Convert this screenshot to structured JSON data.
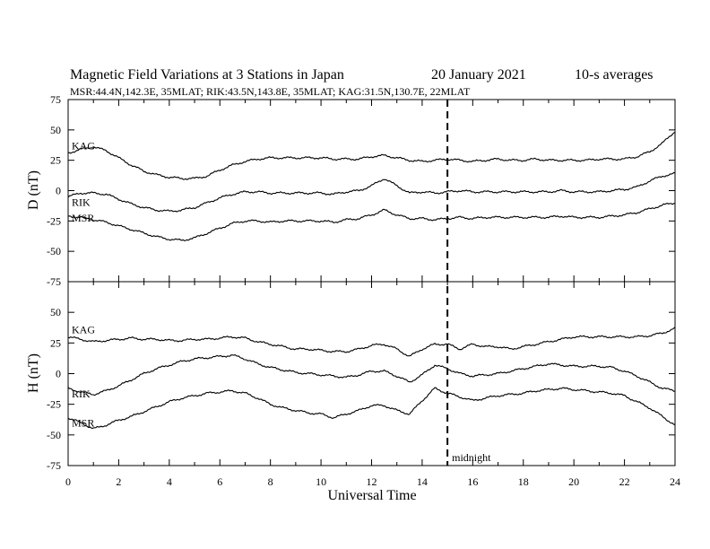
{
  "header": {
    "title": "Magnetic Field Variations at 3 Stations in Japan",
    "date": "20 January  2021",
    "averaging": "10-s averages",
    "subtitle": "MSR:44.4N,142.3E, 35MLAT;  RIK:43.5N,143.8E, 35MLAT;  KAG:31.5N,130.7E, 22MLAT"
  },
  "chart_data": [
    {
      "type": "line",
      "panel": "D",
      "ylabel": "D (nT)",
      "xlim": [
        0,
        24
      ],
      "ylim": [
        -75,
        75
      ],
      "yticks": [
        75,
        50,
        25,
        0,
        -25,
        -50,
        -75
      ],
      "ytick_labels": [
        "75",
        "50",
        "25",
        "0",
        "-25",
        "-50",
        "-75"
      ],
      "series": [
        {
          "name": "KAG",
          "x": [
            0,
            0.5,
            1,
            1.5,
            2,
            2.5,
            3,
            3.5,
            4,
            4.5,
            5,
            5.5,
            6,
            6.5,
            7,
            7.5,
            8,
            8.5,
            9,
            9.5,
            10,
            10.5,
            11,
            11.5,
            12,
            12.5,
            13,
            13.5,
            14,
            14.5,
            15,
            15.5,
            16,
            16.5,
            17,
            17.5,
            18,
            18.5,
            19,
            19.5,
            20,
            20.5,
            21,
            21.5,
            22,
            22.5,
            23,
            23.5,
            24
          ],
          "values": [
            31,
            34,
            36,
            33,
            27,
            21,
            16,
            13,
            11,
            10,
            10,
            12,
            17,
            21,
            24,
            26,
            27,
            27,
            27,
            27,
            27,
            26,
            26,
            26,
            28,
            29,
            27,
            25,
            24,
            25,
            26,
            25,
            24,
            25,
            26,
            25,
            25,
            26,
            25,
            25,
            25,
            25,
            26,
            26,
            26,
            28,
            32,
            39,
            49
          ]
        },
        {
          "name": "RIK",
          "x": [
            0,
            0.5,
            1,
            1.5,
            2,
            2.5,
            3,
            3.5,
            4,
            4.5,
            5,
            5.5,
            6,
            6.5,
            7,
            7.5,
            8,
            8.5,
            9,
            9.5,
            10,
            10.5,
            11,
            11.5,
            12,
            12.5,
            13,
            13.5,
            14,
            14.5,
            15,
            15.5,
            16,
            16.5,
            17,
            17.5,
            18,
            18.5,
            19,
            19.5,
            20,
            20.5,
            21,
            21.5,
            22,
            22.5,
            23,
            23.5,
            24
          ],
          "values": [
            -5,
            -2,
            -2,
            -3,
            -7,
            -11,
            -14,
            -16,
            -17,
            -16,
            -14,
            -10,
            -6,
            -3,
            -1,
            -1,
            -2,
            -2,
            -2,
            -2,
            -2,
            -3,
            -1,
            0,
            4,
            10,
            4,
            -2,
            -1,
            -2,
            -1,
            0,
            -1,
            -1,
            -1,
            -1,
            -1,
            -1,
            -1,
            0,
            -1,
            -1,
            -1,
            0,
            1,
            3,
            8,
            12,
            14
          ]
        },
        {
          "name": "MSR",
          "x": [
            0,
            0.5,
            1,
            1.5,
            2,
            2.5,
            3,
            3.5,
            4,
            4.5,
            5,
            5.5,
            6,
            6.5,
            7,
            7.5,
            8,
            8.5,
            9,
            9.5,
            10,
            10.5,
            11,
            11.5,
            12,
            12.5,
            13,
            13.5,
            14,
            14.5,
            15,
            15.5,
            16,
            16.5,
            17,
            17.5,
            18,
            18.5,
            19,
            19.5,
            20,
            20.5,
            21,
            21.5,
            22,
            22.5,
            23,
            23.5,
            24
          ],
          "values": [
            -21,
            -22,
            -24,
            -26,
            -29,
            -32,
            -35,
            -38,
            -40,
            -41,
            -39,
            -35,
            -31,
            -27,
            -25,
            -25,
            -26,
            -25,
            -25,
            -25,
            -25,
            -26,
            -24,
            -23,
            -20,
            -16,
            -20,
            -23,
            -23,
            -24,
            -23,
            -22,
            -23,
            -22,
            -22,
            -22,
            -22,
            -22,
            -22,
            -21,
            -22,
            -22,
            -22,
            -21,
            -20,
            -18,
            -15,
            -12,
            -10
          ]
        }
      ]
    },
    {
      "type": "line",
      "panel": "H",
      "ylabel": "H (nT)",
      "xlabel": "Universal Time",
      "xlim": [
        0,
        24
      ],
      "ylim": [
        -75,
        75
      ],
      "xticks": [
        0,
        2,
        4,
        6,
        8,
        10,
        12,
        14,
        16,
        18,
        20,
        22,
        24
      ],
      "xtick_labels": [
        "0",
        "2",
        "4",
        "6",
        "8",
        "10",
        "12",
        "14",
        "16",
        "18",
        "20",
        "22",
        "24"
      ],
      "yticks": [
        50,
        25,
        0,
        -25,
        -50,
        -75
      ],
      "ytick_labels": [
        "50",
        "25",
        "0",
        "-25",
        "-50",
        "-75"
      ],
      "series": [
        {
          "name": "KAG",
          "x": [
            0,
            0.5,
            1,
            1.5,
            2,
            2.5,
            3,
            3.5,
            4,
            4.5,
            5,
            5.5,
            6,
            6.5,
            7,
            7.5,
            8,
            8.5,
            9,
            9.5,
            10,
            10.5,
            11,
            11.5,
            12,
            12.5,
            13,
            13.5,
            14,
            14.5,
            15,
            15.5,
            16,
            16.5,
            17,
            17.5,
            18,
            18.5,
            19,
            19.5,
            20,
            20.5,
            21,
            21.5,
            22,
            22.5,
            23,
            23.5,
            24
          ],
          "values": [
            30,
            28,
            26,
            27,
            28,
            29,
            28,
            28,
            27,
            27,
            28,
            28,
            29,
            30,
            29,
            26,
            24,
            22,
            20,
            20,
            19,
            18,
            18,
            20,
            23,
            24,
            20,
            14,
            20,
            24,
            24,
            20,
            24,
            22,
            22,
            20,
            22,
            24,
            26,
            28,
            30,
            30,
            30,
            30,
            30,
            30,
            31,
            33,
            37
          ]
        },
        {
          "name": "RIK",
          "x": [
            0,
            0.5,
            1,
            1.5,
            2,
            2.5,
            3,
            3.5,
            4,
            4.5,
            5,
            5.5,
            6,
            6.5,
            7,
            7.5,
            8,
            8.5,
            9,
            9.5,
            10,
            10.5,
            11,
            11.5,
            12,
            12.5,
            13,
            13.5,
            14,
            14.5,
            15,
            15.5,
            16,
            16.5,
            17,
            17.5,
            18,
            18.5,
            19,
            19.5,
            20,
            20.5,
            21,
            21.5,
            22,
            22.5,
            23,
            23.5,
            24
          ],
          "values": [
            -12,
            -15,
            -17,
            -14,
            -10,
            -5,
            0,
            4,
            7,
            10,
            12,
            13,
            14,
            15,
            12,
            8,
            5,
            3,
            1,
            0,
            -1,
            -2,
            -3,
            -1,
            2,
            2,
            -2,
            -7,
            -1,
            7,
            4,
            0,
            -2,
            -1,
            0,
            2,
            4,
            6,
            8,
            7,
            6,
            6,
            6,
            5,
            2,
            -2,
            -7,
            -12,
            -14
          ]
        },
        {
          "name": "MSR",
          "x": [
            0,
            0.5,
            1,
            1.5,
            2,
            2.5,
            3,
            3.5,
            4,
            4.5,
            5,
            5.5,
            6,
            6.5,
            7,
            7.5,
            8,
            8.5,
            9,
            9.5,
            10,
            10.5,
            11,
            11.5,
            12,
            12.5,
            13,
            13.5,
            14,
            14.5,
            15,
            15.5,
            16,
            16.5,
            17,
            17.5,
            18,
            18.5,
            19,
            19.5,
            20,
            20.5,
            21,
            21.5,
            22,
            22.5,
            23,
            23.5,
            24
          ],
          "values": [
            -36,
            -40,
            -45,
            -42,
            -38,
            -35,
            -31,
            -27,
            -23,
            -20,
            -18,
            -16,
            -15,
            -14,
            -16,
            -20,
            -25,
            -28,
            -30,
            -32,
            -33,
            -36,
            -33,
            -30,
            -26,
            -26,
            -30,
            -33,
            -22,
            -12,
            -16,
            -19,
            -22,
            -20,
            -18,
            -17,
            -16,
            -14,
            -13,
            -12,
            -13,
            -14,
            -15,
            -16,
            -18,
            -23,
            -28,
            -35,
            -42
          ]
        }
      ]
    }
  ],
  "annotations": {
    "midnight_ut": 15,
    "midnight_label": "midnight"
  }
}
